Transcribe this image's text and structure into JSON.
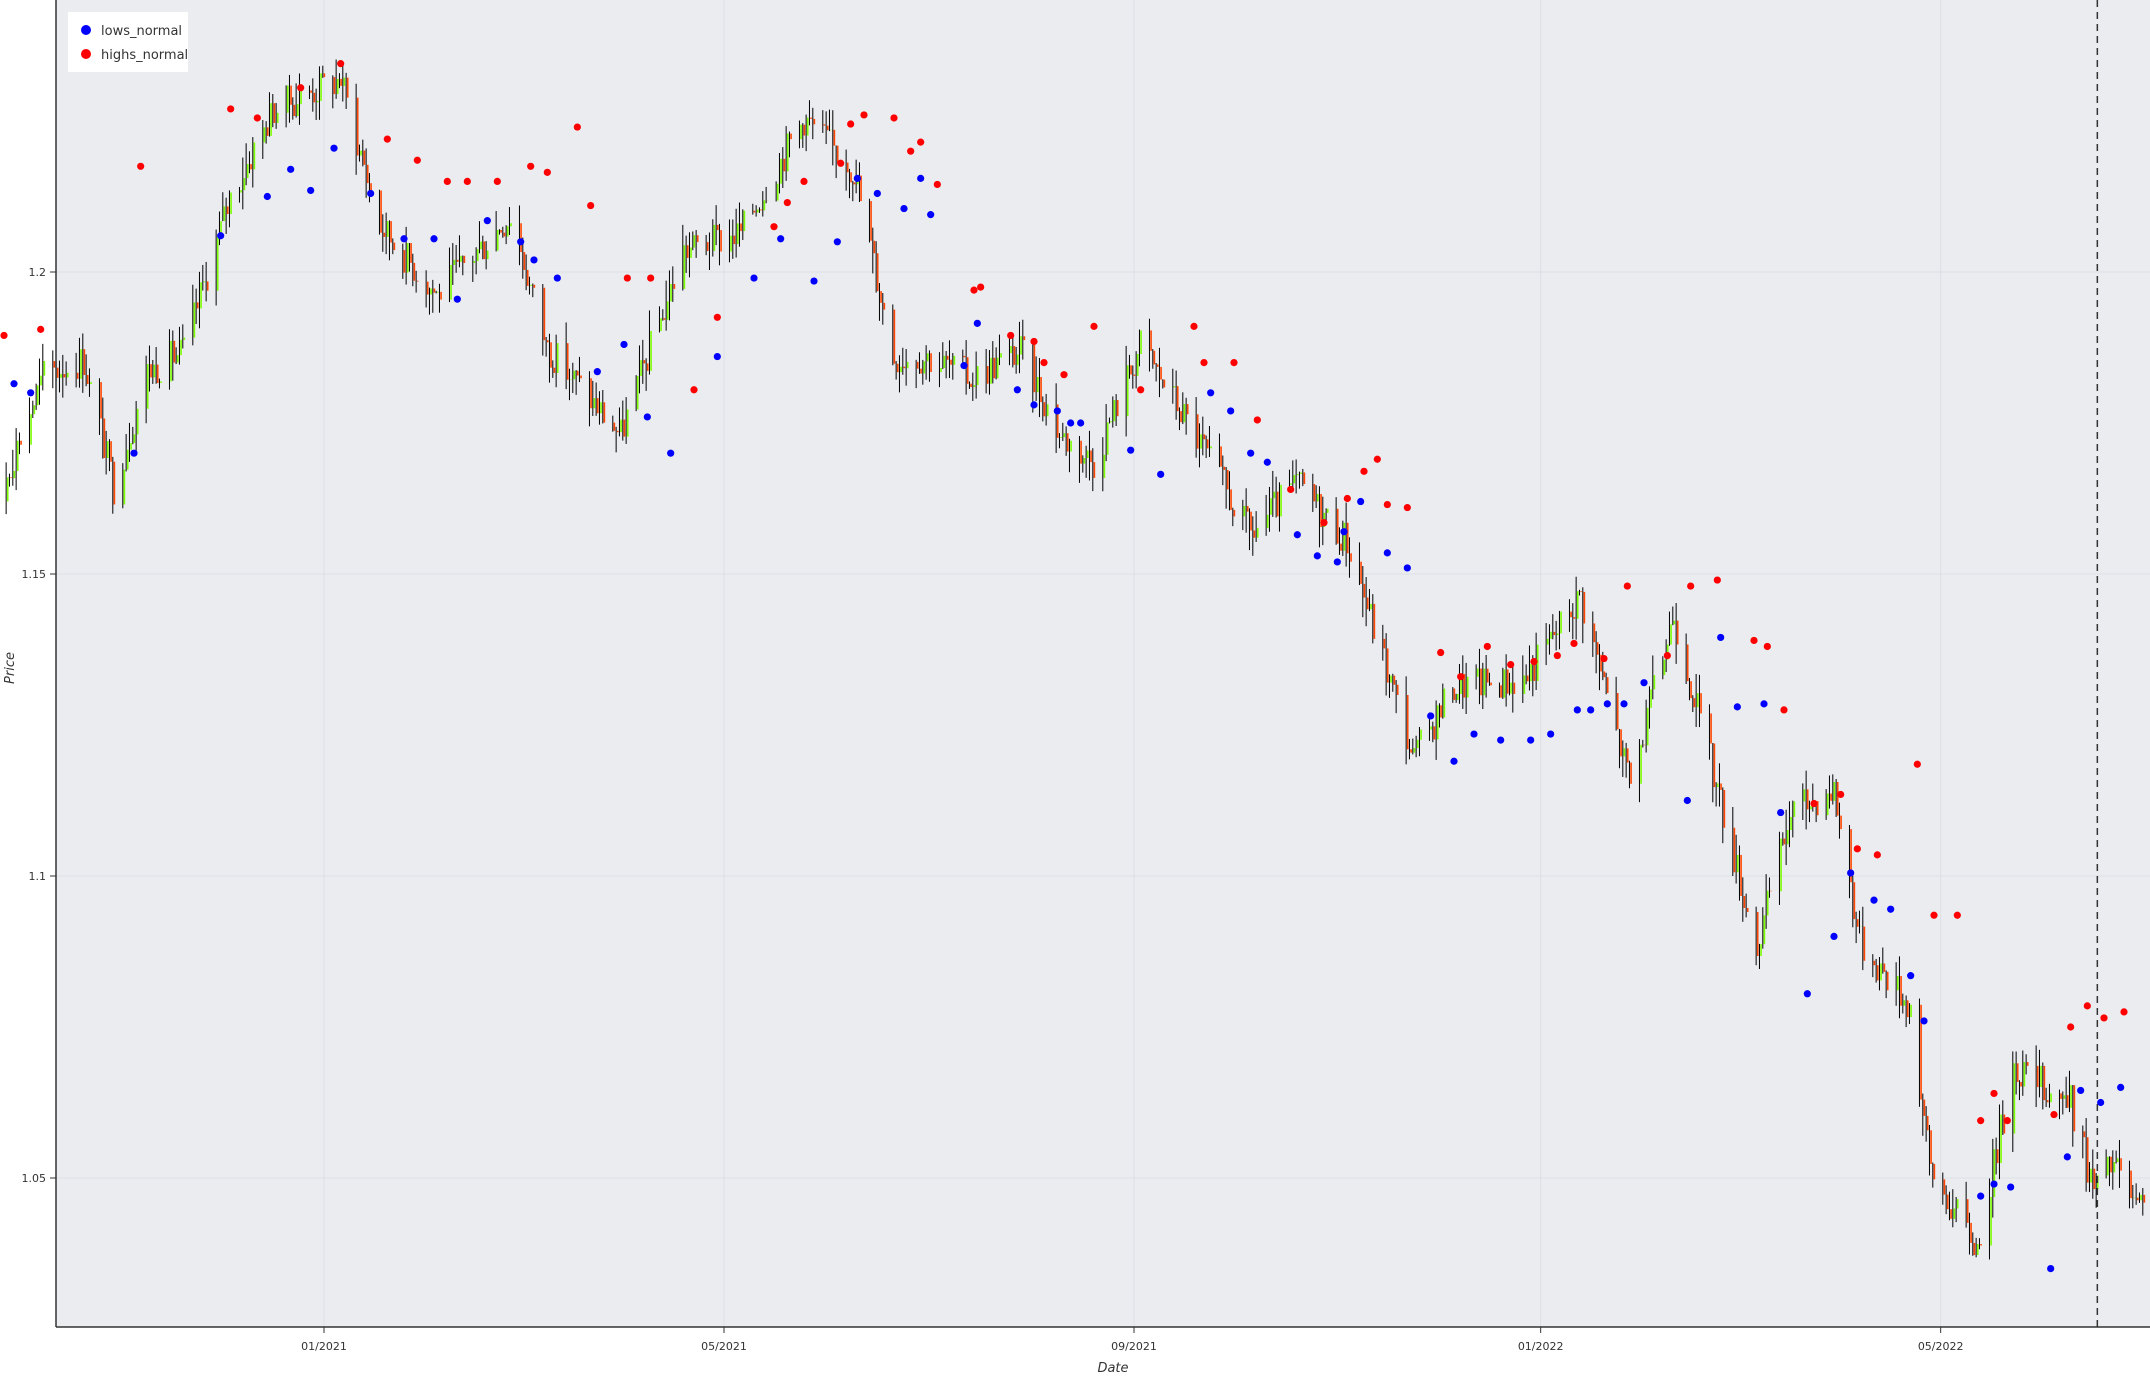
{
  "chart_data": {
    "type": "ohlc",
    "xlabel": "Date",
    "ylabel": "Price",
    "x_range": [
      "2020-09-09",
      "2022-07-04"
    ],
    "ylim": [
      1.0285,
      1.2475
    ],
    "grid": true,
    "legend_position": "top-left",
    "colors": {
      "plot_background": "#eaecf0",
      "grid": "#dcdfe3",
      "up": "#7cfc00",
      "down": "#ff4500",
      "wick": "#000000",
      "lows_normal": "#0000ff",
      "highs_normal": "#ff0000",
      "vline": "#333333"
    },
    "x_ticks": [
      {
        "date": "2021-01-01",
        "label": "01/2021"
      },
      {
        "date": "2021-05-01",
        "label": "05/2021"
      },
      {
        "date": "2021-09-01",
        "label": "09/2021"
      },
      {
        "date": "2022-01-01",
        "label": "01/2022"
      },
      {
        "date": "2022-05-01",
        "label": "05/2022"
      }
    ],
    "y_ticks": [
      {
        "value": 1.05,
        "label": "1.05"
      },
      {
        "value": 1.1,
        "label": "1.1"
      },
      {
        "value": 1.15,
        "label": "1.15"
      },
      {
        "value": 1.2,
        "label": "1.2"
      }
    ],
    "vertical_line": {
      "date": "2022-06-17",
      "style": "dashed"
    },
    "price_path": [
      [
        "2020-09-15",
        1.177
      ],
      [
        "2020-09-25",
        1.1625
      ],
      [
        "2020-10-09",
        1.183
      ],
      [
        "2020-10-21",
        1.1855
      ],
      [
        "2020-10-30",
        1.1645
      ],
      [
        "2020-11-09",
        1.1835
      ],
      [
        "2020-11-20",
        1.187
      ],
      [
        "2020-12-04",
        1.2125
      ],
      [
        "2020-12-17",
        1.227
      ],
      [
        "2021-01-06",
        1.232
      ],
      [
        "2021-01-18",
        1.2075
      ],
      [
        "2021-02-04",
        1.1963
      ],
      [
        "2021-02-26",
        1.2095
      ],
      [
        "2021-03-09",
        1.1875
      ],
      [
        "2021-03-31",
        1.173
      ],
      [
        "2021-04-19",
        1.2035
      ],
      [
        "2021-05-06",
        1.2065
      ],
      [
        "2021-05-25",
        1.2255
      ],
      [
        "2021-06-09",
        1.217
      ],
      [
        "2021-06-21",
        1.186
      ],
      [
        "2021-07-01",
        1.186
      ],
      [
        "2021-07-14",
        1.1825
      ],
      [
        "2021-07-29",
        1.187
      ],
      [
        "2021-08-10",
        1.173
      ],
      [
        "2021-08-20",
        1.1685
      ],
      [
        "2021-09-03",
        1.188
      ],
      [
        "2021-09-20",
        1.1725
      ],
      [
        "2021-10-06",
        1.1565
      ],
      [
        "2021-10-20",
        1.165
      ],
      [
        "2021-11-04",
        1.1555
      ],
      [
        "2021-11-24",
        1.1195
      ],
      [
        "2021-12-06",
        1.1315
      ],
      [
        "2021-12-27",
        1.1325
      ],
      [
        "2022-01-13",
        1.1465
      ],
      [
        "2022-01-28",
        1.115
      ],
      [
        "2022-02-10",
        1.1435
      ],
      [
        "2022-03-07",
        1.088
      ],
      [
        "2022-03-17",
        1.1105
      ],
      [
        "2022-03-30",
        1.1145
      ],
      [
        "2022-04-07",
        1.089
      ],
      [
        "2022-04-22",
        1.0785
      ],
      [
        "2022-04-28",
        1.051
      ],
      [
        "2022-05-12",
        1.0385
      ],
      [
        "2022-05-23",
        1.0685
      ],
      [
        "2022-06-09",
        1.0625
      ],
      [
        "2022-06-16",
        1.048
      ],
      [
        "2022-06-22",
        1.0525
      ],
      [
        "2022-06-28",
        1.0455
      ],
      [
        "2022-07-04",
        1.0425
      ]
    ],
    "lows_normal": [
      [
        "2020-09-15",
        1.1745
      ],
      [
        "2020-09-30",
        1.1815
      ],
      [
        "2020-10-05",
        1.18
      ],
      [
        "2020-11-05",
        1.17
      ],
      [
        "2020-12-01",
        1.206
      ],
      [
        "2020-12-15",
        1.2125
      ],
      [
        "2020-12-22",
        1.217
      ],
      [
        "2020-12-28",
        1.2135
      ],
      [
        "2021-01-04",
        1.2205
      ],
      [
        "2021-01-15",
        1.213
      ],
      [
        "2021-01-25",
        1.2055
      ],
      [
        "2021-02-03",
        1.2055
      ],
      [
        "2021-02-10",
        1.1955
      ],
      [
        "2021-02-19",
        1.2085
      ],
      [
        "2021-03-01",
        1.205
      ],
      [
        "2021-03-05",
        1.202
      ],
      [
        "2021-03-12",
        1.199
      ],
      [
        "2021-03-24",
        1.1835
      ],
      [
        "2021-04-01",
        1.188
      ],
      [
        "2021-04-08",
        1.176
      ],
      [
        "2021-04-15",
        1.17
      ],
      [
        "2021-04-29",
        1.186
      ],
      [
        "2021-05-10",
        1.199
      ],
      [
        "2021-05-18",
        1.2055
      ],
      [
        "2021-05-28",
        1.1985
      ],
      [
        "2021-06-04",
        1.205
      ],
      [
        "2021-06-10",
        1.2155
      ],
      [
        "2021-06-16",
        1.213
      ],
      [
        "2021-06-24",
        1.2105
      ],
      [
        "2021-06-29",
        1.2155
      ],
      [
        "2021-07-02",
        1.2095
      ],
      [
        "2021-07-12",
        1.1845
      ],
      [
        "2021-07-16",
        1.1915
      ],
      [
        "2021-07-28",
        1.1805
      ],
      [
        "2021-08-02",
        1.178
      ],
      [
        "2021-08-09",
        1.177
      ],
      [
        "2021-08-13",
        1.175
      ],
      [
        "2021-08-16",
        1.175
      ],
      [
        "2021-08-31",
        1.1705
      ],
      [
        "2021-09-09",
        1.1665
      ],
      [
        "2021-09-24",
        1.18
      ],
      [
        "2021-09-30",
        1.177
      ],
      [
        "2021-10-06",
        1.17
      ],
      [
        "2021-10-11",
        1.1685
      ],
      [
        "2021-10-20",
        1.1565
      ],
      [
        "2021-10-26",
        1.153
      ],
      [
        "2021-11-01",
        1.152
      ],
      [
        "2021-11-03",
        1.157
      ],
      [
        "2021-11-08",
        1.162
      ],
      [
        "2021-11-16",
        1.1535
      ],
      [
        "2021-11-22",
        1.151
      ],
      [
        "2021-11-29",
        1.1265
      ],
      [
        "2021-12-06",
        1.119
      ],
      [
        "2021-12-12",
        1.1235
      ],
      [
        "2021-12-20",
        1.1225
      ],
      [
        "2021-12-29",
        1.1225
      ],
      [
        "2022-01-04",
        1.1235
      ],
      [
        "2022-01-12",
        1.1275
      ],
      [
        "2022-01-16",
        1.1275
      ],
      [
        "2022-01-21",
        1.1285
      ],
      [
        "2022-01-26",
        1.1285
      ],
      [
        "2022-02-01",
        1.132
      ],
      [
        "2022-02-14",
        1.1125
      ],
      [
        "2022-02-24",
        1.1395
      ],
      [
        "2022-03-01",
        1.128
      ],
      [
        "2022-03-09",
        1.1285
      ],
      [
        "2022-03-14",
        1.1105
      ],
      [
        "2022-03-22",
        1.0805
      ],
      [
        "2022-03-30",
        1.09
      ],
      [
        "2022-04-04",
        1.1005
      ],
      [
        "2022-04-11",
        1.096
      ],
      [
        "2022-04-16",
        1.0945
      ],
      [
        "2022-04-22",
        1.0835
      ],
      [
        "2022-04-26",
        1.076
      ],
      [
        "2022-05-13",
        1.047
      ],
      [
        "2022-05-17",
        1.049
      ],
      [
        "2022-05-22",
        1.0485
      ],
      [
        "2022-06-03",
        1.035
      ],
      [
        "2022-06-08",
        1.0535
      ],
      [
        "2022-06-12",
        1.0645
      ],
      [
        "2022-06-18",
        1.0625
      ],
      [
        "2022-06-24",
        1.065
      ]
    ],
    "highs_normal": [
      [
        "2020-09-27",
        1.1895
      ],
      [
        "2020-10-08",
        1.1905
      ],
      [
        "2020-11-07",
        1.2175
      ],
      [
        "2020-12-04",
        1.227
      ],
      [
        "2020-12-12",
        1.2255
      ],
      [
        "2020-12-25",
        1.2305
      ],
      [
        "2021-01-06",
        1.2345
      ],
      [
        "2021-01-20",
        1.222
      ],
      [
        "2021-01-29",
        1.2185
      ],
      [
        "2021-02-07",
        1.215
      ],
      [
        "2021-02-13",
        1.215
      ],
      [
        "2021-02-22",
        1.215
      ],
      [
        "2021-03-04",
        1.2175
      ],
      [
        "2021-03-09",
        1.2165
      ],
      [
        "2021-03-18",
        1.224
      ],
      [
        "2021-03-22",
        1.211
      ],
      [
        "2021-04-02",
        1.199
      ],
      [
        "2021-04-09",
        1.199
      ],
      [
        "2021-04-22",
        1.1805
      ],
      [
        "2021-04-29",
        1.1925
      ],
      [
        "2021-05-16",
        1.2075
      ],
      [
        "2021-05-20",
        1.2115
      ],
      [
        "2021-05-25",
        1.215
      ],
      [
        "2021-06-05",
        1.218
      ],
      [
        "2021-06-08",
        1.2245
      ],
      [
        "2021-06-12",
        1.226
      ],
      [
        "2021-06-21",
        1.2255
      ],
      [
        "2021-06-26",
        1.22
      ],
      [
        "2021-06-29",
        1.2215
      ],
      [
        "2021-07-04",
        1.2145
      ],
      [
        "2021-07-15",
        1.197
      ],
      [
        "2021-07-17",
        1.1975
      ],
      [
        "2021-07-26",
        1.1895
      ],
      [
        "2021-08-02",
        1.1885
      ],
      [
        "2021-08-05",
        1.185
      ],
      [
        "2021-08-11",
        1.183
      ],
      [
        "2021-08-20",
        1.191
      ],
      [
        "2021-09-03",
        1.1805
      ],
      [
        "2021-09-19",
        1.191
      ],
      [
        "2021-09-22",
        1.185
      ],
      [
        "2021-10-01",
        1.185
      ],
      [
        "2021-10-08",
        1.1755
      ],
      [
        "2021-10-18",
        1.164
      ],
      [
        "2021-10-28",
        1.1585
      ],
      [
        "2021-11-04",
        1.1625
      ],
      [
        "2021-11-09",
        1.167
      ],
      [
        "2021-11-13",
        1.169
      ],
      [
        "2021-11-16",
        1.1615
      ],
      [
        "2021-11-22",
        1.161
      ],
      [
        "2021-12-02",
        1.137
      ],
      [
        "2021-12-08",
        1.133
      ],
      [
        "2021-12-16",
        1.138
      ],
      [
        "2021-12-23",
        1.135
      ],
      [
        "2021-12-30",
        1.1355
      ],
      [
        "2022-01-06",
        1.1365
      ],
      [
        "2022-01-11",
        1.1385
      ],
      [
        "2022-01-20",
        1.136
      ],
      [
        "2022-01-27",
        1.148
      ],
      [
        "2022-02-08",
        1.1365
      ],
      [
        "2022-02-15",
        1.148
      ],
      [
        "2022-02-23",
        1.149
      ],
      [
        "2022-03-06",
        1.139
      ],
      [
        "2022-03-10",
        1.138
      ],
      [
        "2022-03-15",
        1.1275
      ],
      [
        "2022-03-24",
        1.112
      ],
      [
        "2022-04-01",
        1.1135
      ],
      [
        "2022-04-06",
        1.1045
      ],
      [
        "2022-04-12",
        1.1035
      ],
      [
        "2022-04-24",
        1.1185
      ],
      [
        "2022-04-29",
        1.0935
      ],
      [
        "2022-05-06",
        1.0935
      ],
      [
        "2022-05-13",
        1.0595
      ],
      [
        "2022-05-17",
        1.064
      ],
      [
        "2022-05-21",
        1.0595
      ],
      [
        "2022-06-04",
        1.0605
      ],
      [
        "2022-06-09",
        1.075
      ],
      [
        "2022-06-14",
        1.0785
      ],
      [
        "2022-06-19",
        1.0765
      ],
      [
        "2022-06-25",
        1.0775
      ]
    ],
    "legend": [
      {
        "label": "lows_normal",
        "color": "#0000ff"
      },
      {
        "label": "highs_normal",
        "color": "#ff0000"
      }
    ]
  }
}
